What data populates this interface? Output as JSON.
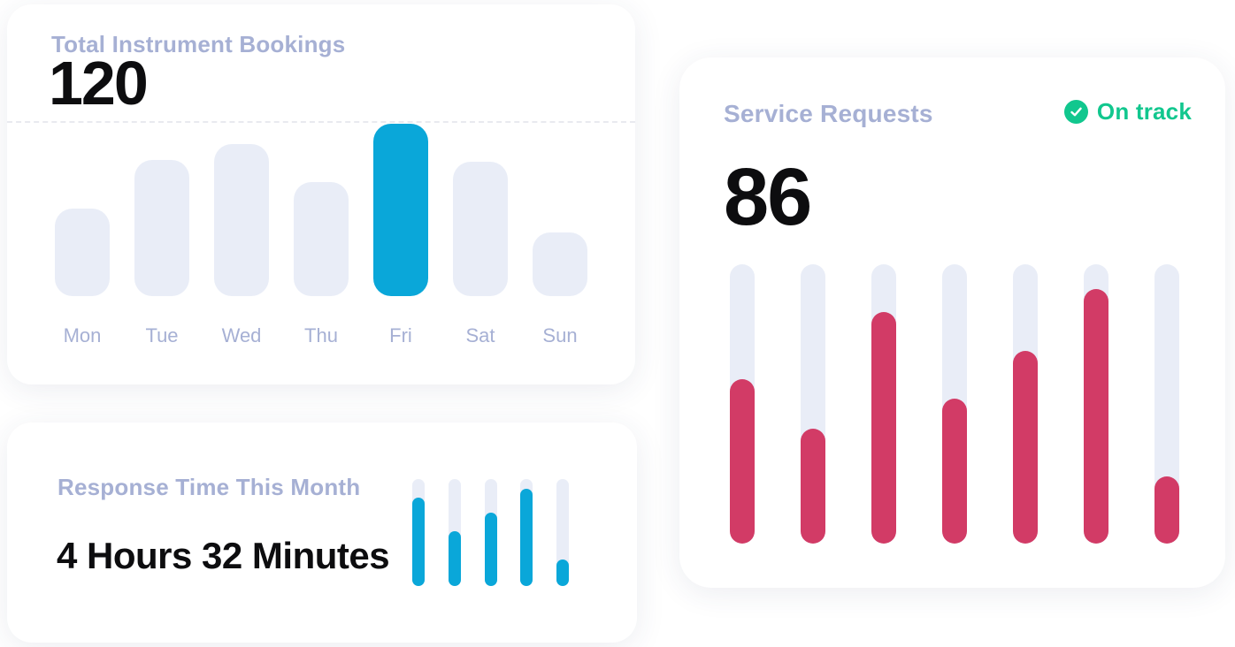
{
  "cards": {
    "bookings": {
      "title": "Total Instrument Bookings",
      "value": "120"
    },
    "response": {
      "title": "Response Time This Month",
      "value": "4 Hours 32 Minutes"
    },
    "service": {
      "title": "Service Requests",
      "value": "86",
      "badge_label": "On track",
      "badge_icon": "check-circle-icon"
    }
  },
  "chart_data": [
    {
      "id": "bookings-by-day",
      "type": "bar",
      "title": "Total Instrument Bookings",
      "total_value": 120,
      "categories": [
        "Mon",
        "Tue",
        "Wed",
        "Thu",
        "Fri",
        "Sat",
        "Sun"
      ],
      "values_pct_of_max": [
        51,
        79,
        88,
        66,
        100,
        78,
        37
      ],
      "highlight_category": "Fri",
      "xlabel": "",
      "ylabel": "",
      "y_axis_shown": false,
      "gridlines": "single dashed horizontal line at top of chart area",
      "bar_color": "#e9edf7",
      "highlight_color": "#0aa7d9",
      "legend": "none"
    },
    {
      "id": "service-requests-progress",
      "type": "bar",
      "title": "Service Requests",
      "total_value": 86,
      "categories": [
        "bar-1",
        "bar-2",
        "bar-3",
        "bar-4",
        "bar-5",
        "bar-6",
        "bar-7"
      ],
      "values_pct": [
        59,
        41,
        83,
        52,
        69,
        91,
        24
      ],
      "style": "vertical progress pills, fill from bottom",
      "fill_color": "#d23b66",
      "track_color": "#e9edf7",
      "xlabel": "",
      "ylabel": "",
      "y_axis_shown": false,
      "legend": "none"
    },
    {
      "id": "response-time-mini",
      "type": "bar",
      "title": "Response Time This Month",
      "categories": [
        "bar-1",
        "bar-2",
        "bar-3",
        "bar-4",
        "bar-5"
      ],
      "values_pct": [
        83,
        51,
        69,
        91,
        25
      ],
      "style": "vertical progress pills, fill from bottom",
      "fill_color": "#0aa7d9",
      "track_color": "#e9edf7",
      "xlabel": "",
      "ylabel": "",
      "y_axis_shown": false,
      "legend": "none"
    }
  ],
  "colors": {
    "accent_blue": "#0aa7d9",
    "accent_pink": "#d23b66",
    "accent_green": "#11c78e",
    "bar_track": "#e9edf7",
    "title_text": "#a6b0d4",
    "value_text": "#0d0d0f",
    "dashed_line": "#e9eaef",
    "card_background": "#ffffff"
  }
}
